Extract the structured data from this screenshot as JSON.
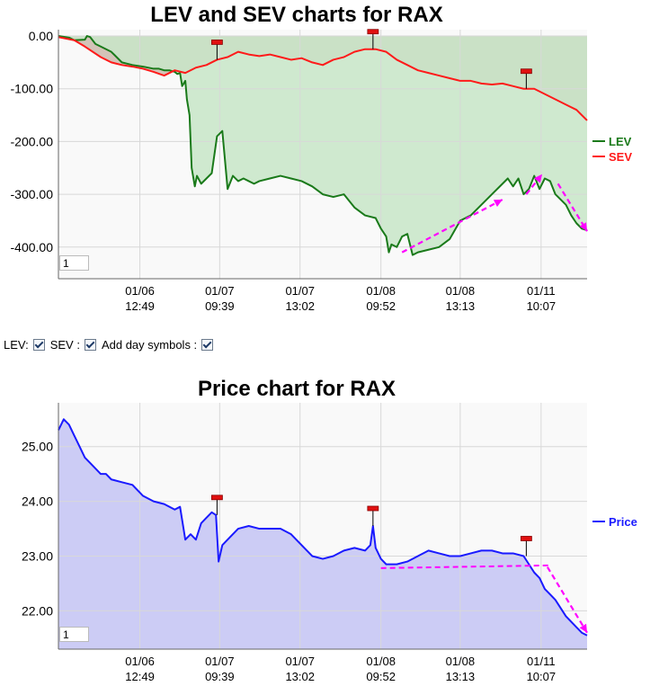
{
  "chart_data": [
    {
      "type": "area",
      "title": "LEV and SEV charts for RAX",
      "xlabel": "",
      "ylabel": "",
      "ylim": [
        -460,
        12
      ],
      "yticks": [
        0,
        -100,
        -200,
        -300,
        -400
      ],
      "ytick_labels": [
        "0.00",
        "-100.00",
        "-200.00",
        "-300.00",
        "-400.00"
      ],
      "xlim": [
        0,
        100
      ],
      "xticks": [
        {
          "x": 15.4,
          "line1": "01/06",
          "line2": "12:49"
        },
        {
          "x": 30.5,
          "line1": "01/07",
          "line2": "09:39"
        },
        {
          "x": 45.7,
          "line1": "01/07",
          "line2": "13:02"
        },
        {
          "x": 61.0,
          "line1": "01/08",
          "line2": "09:52"
        },
        {
          "x": 76.0,
          "line1": "01/08",
          "line2": "13:13"
        },
        {
          "x": 91.3,
          "line1": "01/11",
          "line2": "10:07"
        }
      ],
      "legend_position": "right",
      "series": [
        {
          "name": "LEV",
          "color": "#1a7a1a",
          "fill": "#c8e6c8",
          "x": [
            0,
            2,
            3,
            5,
            5.4,
            6,
            7,
            8,
            10,
            12,
            14,
            16,
            18,
            19,
            20,
            21,
            22,
            22.5,
            23,
            23.4,
            24,
            24.3,
            24.8,
            25.2,
            25.8,
            26.2,
            27,
            28,
            29,
            30,
            31,
            32,
            33,
            34,
            35,
            36,
            37,
            38,
            40,
            42,
            44,
            46,
            48,
            50,
            52,
            54,
            56,
            58,
            60,
            61,
            62,
            62.5,
            63,
            64,
            65,
            66,
            67,
            68,
            70,
            72,
            74,
            76,
            78,
            80,
            82,
            84,
            85,
            86,
            87,
            88,
            89,
            90,
            91,
            92,
            93,
            94,
            95,
            96,
            97,
            98,
            99,
            100
          ],
          "y": [
            0,
            -3,
            -8,
            -7,
            0,
            -2,
            -15,
            -20,
            -30,
            -50,
            -55,
            -58,
            -62,
            -62,
            -65,
            -65,
            -68,
            -72,
            -70,
            -95,
            -85,
            -120,
            -150,
            -250,
            -285,
            -265,
            -280,
            -270,
            -260,
            -190,
            -180,
            -290,
            -265,
            -275,
            -270,
            -275,
            -280,
            -275,
            -270,
            -265,
            -270,
            -275,
            -285,
            -300,
            -305,
            -300,
            -325,
            -340,
            -345,
            -365,
            -380,
            -410,
            -395,
            -400,
            -380,
            -375,
            -415,
            -410,
            -405,
            -400,
            -385,
            -350,
            -340,
            -320,
            -300,
            -280,
            -270,
            -285,
            -270,
            -300,
            -290,
            -265,
            -290,
            -270,
            -275,
            -300,
            -310,
            -320,
            -340,
            -355,
            -365,
            -368
          ]
        },
        {
          "name": "SEV",
          "color": "#ff1a1a",
          "fill": "#d4c3b8",
          "x": [
            0,
            3,
            5,
            8,
            10,
            12,
            14,
            16,
            18,
            20,
            22,
            24,
            26,
            28,
            30,
            32,
            34,
            36,
            38,
            40,
            42,
            44,
            46,
            48,
            50,
            52,
            54,
            56,
            58,
            60,
            62,
            64,
            66,
            68,
            70,
            72,
            74,
            76,
            78,
            80,
            82,
            84,
            86,
            88,
            90,
            92,
            94,
            96,
            98,
            100
          ],
          "y": [
            -2,
            -8,
            -20,
            -40,
            -50,
            -55,
            -58,
            -62,
            -68,
            -75,
            -65,
            -70,
            -60,
            -55,
            -45,
            -40,
            -30,
            -35,
            -38,
            -35,
            -40,
            -45,
            -42,
            -50,
            -55,
            -45,
            -40,
            -30,
            -25,
            -25,
            -30,
            -45,
            -55,
            -65,
            -70,
            -75,
            -80,
            -85,
            -85,
            -90,
            -92,
            -90,
            -95,
            -100,
            -100,
            -110,
            -120,
            -130,
            -140,
            -160
          ]
        }
      ],
      "day_symbols_x": [
        30.0,
        59.5,
        88.5
      ],
      "arrows": [
        [
          65,
          -410,
          84,
          -310
        ],
        [
          88.5,
          -300,
          91.5,
          -262
        ],
        [
          94.5,
          -280,
          100,
          -370
        ]
      ]
    },
    {
      "type": "area",
      "title": "Price chart for RAX",
      "xlabel": "",
      "ylabel": "",
      "ylim": [
        21.3,
        25.8
      ],
      "yticks": [
        25,
        24,
        23,
        22
      ],
      "ytick_labels": [
        "25.00",
        "24.00",
        "23.00",
        "22.00"
      ],
      "xlim": [
        0,
        100
      ],
      "xticks": [
        {
          "x": 15.4,
          "line1": "01/06",
          "line2": "12:49"
        },
        {
          "x": 30.5,
          "line1": "01/07",
          "line2": "09:39"
        },
        {
          "x": 45.7,
          "line1": "01/07",
          "line2": "13:02"
        },
        {
          "x": 61.0,
          "line1": "01/08",
          "line2": "09:52"
        },
        {
          "x": 76.0,
          "line1": "01/08",
          "line2": "13:13"
        },
        {
          "x": 91.3,
          "line1": "01/11",
          "line2": "10:07"
        }
      ],
      "legend_position": "right",
      "series": [
        {
          "name": "Price",
          "color": "#1a1aff",
          "fill": "#ccccf5",
          "x": [
            0,
            1,
            2,
            3,
            4,
            5,
            6,
            7,
            8,
            9,
            10,
            12,
            14,
            16,
            18,
            20,
            22,
            23,
            24,
            25,
            26,
            27,
            28,
            29,
            29.8,
            30.3,
            31,
            32,
            34,
            36,
            38,
            40,
            42,
            44,
            46,
            48,
            50,
            52,
            54,
            56,
            58,
            59,
            59.5,
            60,
            61,
            62,
            64,
            66,
            68,
            70,
            72,
            74,
            76,
            78,
            80,
            82,
            84,
            86,
            88,
            89,
            90,
            91,
            92,
            93,
            94,
            95,
            96,
            97,
            98,
            99,
            100
          ],
          "y": [
            25.3,
            25.5,
            25.4,
            25.2,
            25.0,
            24.8,
            24.7,
            24.6,
            24.5,
            24.5,
            24.4,
            24.35,
            24.3,
            24.1,
            24.0,
            23.95,
            23.85,
            23.9,
            23.3,
            23.4,
            23.3,
            23.6,
            23.7,
            23.8,
            23.75,
            22.9,
            23.2,
            23.3,
            23.5,
            23.55,
            23.5,
            23.5,
            23.5,
            23.4,
            23.2,
            23.0,
            22.95,
            23.0,
            23.1,
            23.15,
            23.1,
            23.2,
            23.55,
            23.15,
            22.95,
            22.85,
            22.85,
            22.9,
            23.0,
            23.1,
            23.05,
            23.0,
            23.0,
            23.05,
            23.1,
            23.1,
            23.05,
            23.05,
            23.0,
            22.85,
            22.7,
            22.6,
            22.4,
            22.3,
            22.2,
            22.05,
            21.9,
            21.8,
            21.7,
            21.6,
            21.55
          ]
        }
      ],
      "day_symbols_x": [
        30.0,
        59.5,
        88.5
      ],
      "dashes": [
        [
          61,
          22.78,
          93,
          22.83
        ]
      ],
      "arrows": [
        [
          92.5,
          22.8,
          100,
          21.6
        ]
      ]
    }
  ],
  "controls": {
    "lev_label": "LEV:",
    "sev_label": "SEV :",
    "day_symbols_label": "Add day symbols :"
  },
  "zoom_value": "1"
}
